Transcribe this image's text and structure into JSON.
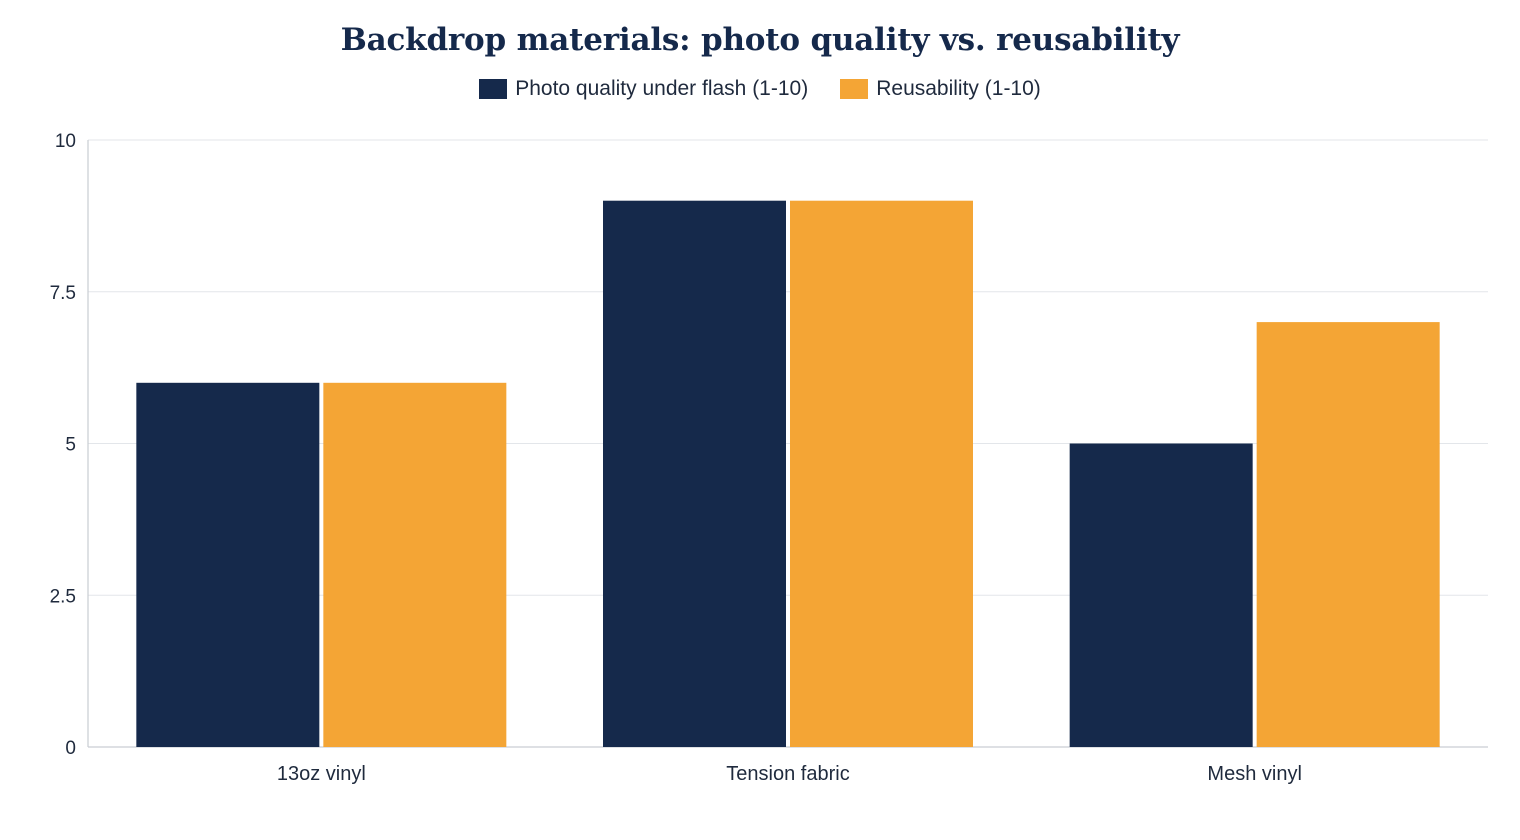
{
  "chart_data": {
    "type": "bar",
    "title": "Backdrop materials: photo quality vs. reusability",
    "categories": [
      "13oz vinyl",
      "Tension fabric",
      "Mesh vinyl"
    ],
    "series": [
      {
        "name": "Photo quality under flash (1-10)",
        "values": [
          6,
          9,
          5
        ],
        "color": "#15294b"
      },
      {
        "name": "Reusability (1-10)",
        "values": [
          6,
          9,
          7
        ],
        "color": "#f4a535"
      }
    ],
    "ylim": [
      0,
      10
    ],
    "yticks": [
      0,
      2.5,
      5,
      7.5,
      10
    ],
    "ytick_labels": [
      "0",
      "2.5",
      "5",
      "7.5",
      "10"
    ],
    "grid": true,
    "legend_position": "top-center",
    "xlabel": "",
    "ylabel": ""
  }
}
